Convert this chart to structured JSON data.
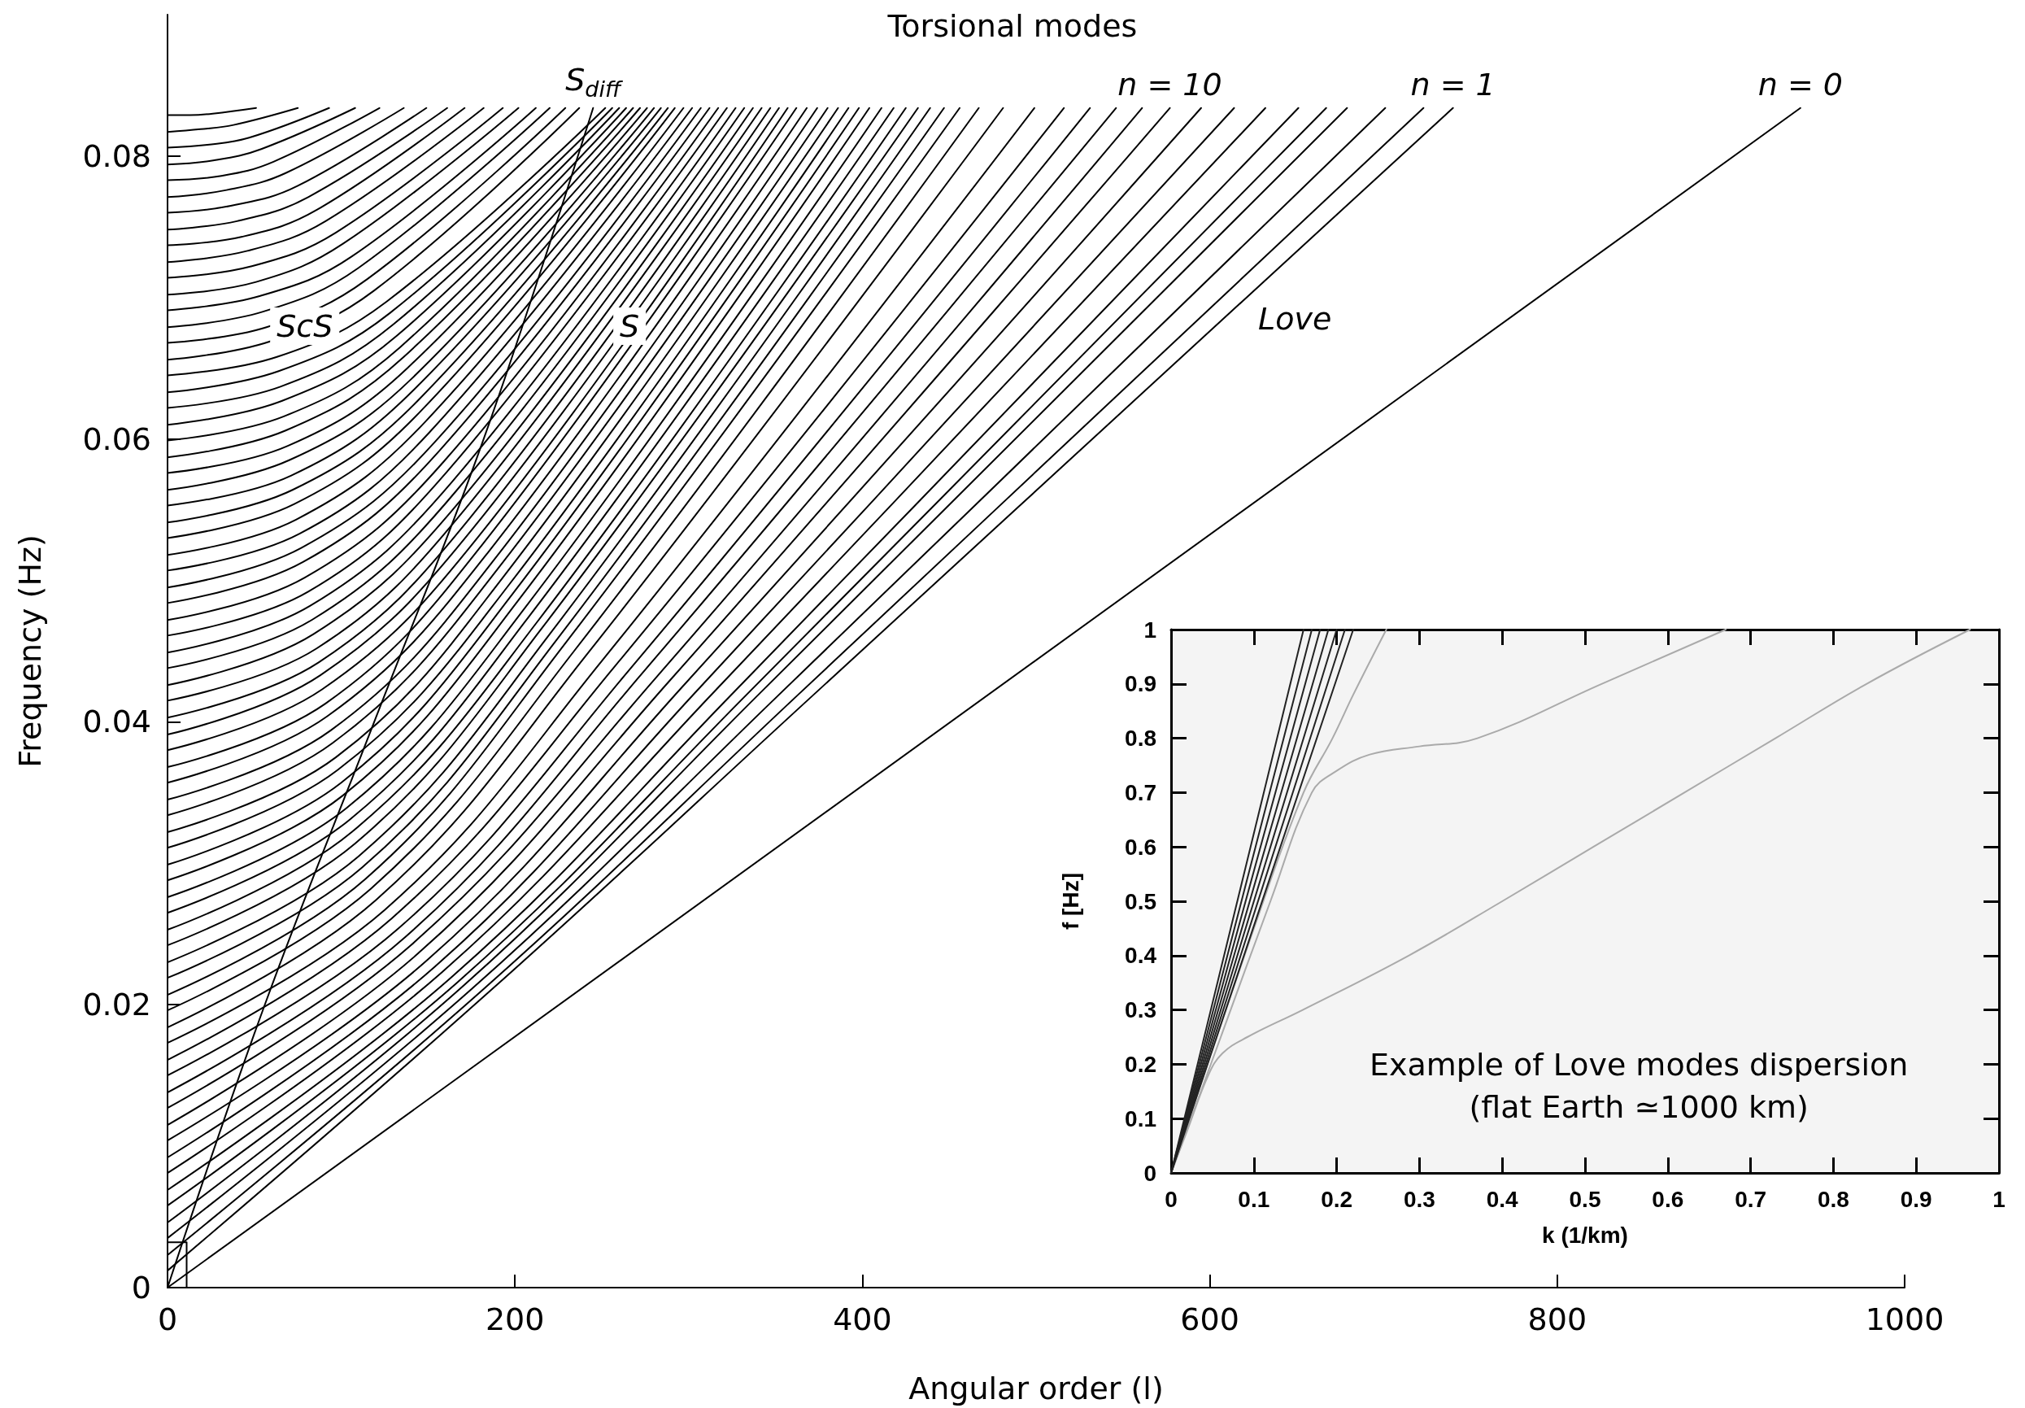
{
  "chart_data": [
    {
      "type": "line",
      "title": "Torsional modes",
      "xlabel": "Angular order (l)",
      "ylabel": "Frequency (Hz)",
      "xlim": [
        0,
        1000
      ],
      "ylim": [
        0,
        0.09
      ],
      "xticks": [
        0,
        200,
        400,
        600,
        800,
        1000
      ],
      "yticks": [
        0,
        0.02,
        0.04,
        0.06,
        0.08
      ],
      "annotations": [
        {
          "text": "S$_{diff}$",
          "x": 245,
          "y": 0.0834
        },
        {
          "text": "ScS",
          "x": 79,
          "y": 0.0663
        },
        {
          "text": "S",
          "x": 266,
          "y": 0.0663
        },
        "Love",
        {
          "text": "n = 10",
          "x": 577,
          "y": 0.0834
        },
        {
          "text": "n = 1",
          "x": 740,
          "y": 0.0834
        },
        {
          "text": "n = 0",
          "x": 940,
          "y": 0.0834
        }
      ],
      "series": [
        {
          "color": "#000000",
          "x": [
            0,
            940
          ],
          "values": [
            0,
            0.0834
          ]
        },
        {
          "type": "step",
          "color": "#000000",
          "x": [
            0,
            11
          ],
          "values": [
            0.0032,
            0
          ]
        },
        {
          "color": "#000000",
          "x": [
            0,
            56,
            119,
            182,
            245
          ],
          "values": [
            0,
            0.02,
            0.04,
            0.06,
            0.0834
          ]
        },
        {
          "color": "#000000",
          "x": [
            0,
            185,
            370,
            740
          ],
          "values": [
            0.0012,
            0.0209,
            0.0417,
            0.0834
          ]
        },
        {
          "color": "#000000",
          "x": [
            0,
            181,
            362,
            723
          ],
          "values": [
            0.0023,
            0.021,
            0.0418,
            0.0834
          ]
        },
        {
          "color": "#000000",
          "x": [
            0,
            175,
            351,
            701
          ],
          "values": [
            0.0035,
            0.0211,
            0.0418,
            0.0834
          ]
        },
        {
          "color": "#000000",
          "x": [
            0,
            170,
            340,
            679
          ],
          "values": [
            0.0046,
            0.0213,
            0.0419,
            0.0834
          ]
        },
        {
          "color": "#000000",
          "x": [
            0,
            167,
            334,
            667
          ],
          "values": [
            0.0058,
            0.0216,
            0.042,
            0.0834
          ]
        },
        {
          "color": "#000000",
          "x": [
            0,
            163,
            326,
            651
          ],
          "values": [
            0.0069,
            0.0219,
            0.0421,
            0.0834
          ]
        },
        {
          "color": "#000000",
          "x": [
            0,
            158,
            316,
            632
          ],
          "values": [
            0.0081,
            0.0223,
            0.0423,
            0.0834
          ]
        },
        {
          "color": "#000000",
          "x": [
            0,
            154,
            307,
            614
          ],
          "values": [
            0.0092,
            0.0227,
            0.0425,
            0.0834
          ]
        },
        {
          "color": "#000000",
          "x": [
            0,
            149,
            298,
            595
          ],
          "values": [
            0.0104,
            0.0231,
            0.0427,
            0.0834
          ]
        },
        {
          "color": "#000000",
          "x": [
            0,
            144,
            289,
            577
          ],
          "values": [
            0.0115,
            0.0236,
            0.0429,
            0.0834
          ]
        },
        {
          "color": "#000000",
          "x": [
            0,
            140,
            281,
            561
          ],
          "values": [
            0.0127,
            0.0242,
            0.0431,
            0.0834
          ]
        },
        {
          "color": "#000000",
          "x": [
            0,
            137,
            273,
            546
          ],
          "values": [
            0.0138,
            0.0248,
            0.0434,
            0.0834
          ]
        },
        {
          "color": "#000000",
          "x": [
            0,
            133,
            266,
            531
          ],
          "values": [
            0.015,
            0.0254,
            0.0437,
            0.0834
          ]
        },
        {
          "color": "#000000",
          "x": [
            0,
            129,
            258,
            516
          ],
          "values": [
            0.0161,
            0.0261,
            0.044,
            0.0834
          ]
        },
        {
          "color": "#000000",
          "x": [
            0,
            125,
            250,
            499
          ],
          "values": [
            0.0173,
            0.0267,
            0.0443,
            0.0834
          ]
        },
        {
          "color": "#000000",
          "x": [
            0,
            120,
            241,
            481
          ],
          "values": [
            0.0184,
            0.0274,
            0.0447,
            0.0834
          ]
        },
        {
          "color": "#000000",
          "x": [
            0,
            117,
            234,
            467
          ],
          "values": [
            0.0196,
            0.0282,
            0.045,
            0.0834
          ]
        },
        {
          "color": "#000000",
          "x": [
            0,
            114,
            228,
            456
          ],
          "values": [
            0.0207,
            0.0289,
            0.0454,
            0.0834
          ]
        },
        {
          "color": "#000000",
          "x": [
            0,
            112,
            224,
            447
          ],
          "values": [
            0.0219,
            0.0297,
            0.0458,
            0.0834
          ]
        },
        {
          "color": "#000000",
          "x": [
            0,
            110,
            220,
            439
          ],
          "values": [
            0.023,
            0.0305,
            0.0462,
            0.0834
          ]
        },
        {
          "color": "#000000",
          "x": [
            0,
            108,
            216,
            432
          ],
          "values": [
            0.0242,
            0.0314,
            0.0467,
            0.0834
          ]
        },
        {
          "color": "#000000",
          "x": [
            0,
            106,
            213,
            425
          ],
          "values": [
            0.0253,
            0.0322,
            0.0471,
            0.0834
          ]
        },
        {
          "color": "#000000",
          "x": [
            0,
            105,
            209,
            418
          ],
          "values": [
            0.0265,
            0.0331,
            0.0476,
            0.0834
          ]
        },
        {
          "color": "#000000",
          "x": [
            0,
            103,
            206,
            411
          ],
          "values": [
            0.0276,
            0.0339,
            0.0481,
            0.0834
          ]
        },
        {
          "color": "#000000",
          "x": [
            0,
            101,
            202,
            404
          ],
          "values": [
            0.0288,
            0.0348,
            0.0486,
            0.0834
          ]
        },
        {
          "color": "#000000",
          "x": [
            0,
            100,
            199,
            398
          ],
          "values": [
            0.0299,
            0.0357,
            0.0491,
            0.0834
          ]
        },
        {
          "color": "#000000",
          "x": [
            0,
            98,
            196,
            392
          ],
          "values": [
            0.0311,
            0.0366,
            0.0496,
            0.0834
          ]
        },
        {
          "color": "#000000",
          "x": [
            0,
            97,
            193,
            386
          ],
          "values": [
            0.0322,
            0.0375,
            0.0502,
            0.0834
          ]
        },
        {
          "color": "#000000",
          "x": [
            0,
            95,
            190,
            380
          ],
          "values": [
            0.0334,
            0.0385,
            0.0508,
            0.0834
          ]
        },
        {
          "color": "#000000",
          "x": [
            0,
            94,
            187,
            374
          ],
          "values": [
            0.0345,
            0.0394,
            0.0513,
            0.0834
          ]
        },
        {
          "color": "#000000",
          "x": [
            0,
            92,
            184,
            368
          ],
          "values": [
            0.0357,
            0.0404,
            0.0519,
            0.0834
          ]
        },
        {
          "color": "#000000",
          "x": [
            0,
            91,
            181,
            362
          ],
          "values": [
            0.0368,
            0.0413,
            0.0525,
            0.0834
          ]
        },
        {
          "color": "#000000",
          "x": [
            0,
            89,
            179,
            357
          ],
          "values": [
            0.038,
            0.0423,
            0.0531,
            0.0834
          ]
        },
        {
          "color": "#000000",
          "x": [
            0,
            88,
            176,
            352
          ],
          "values": [
            0.0391,
            0.0433,
            0.0537,
            0.0834
          ]
        },
        {
          "color": "#000000",
          "x": [
            0,
            87,
            174,
            347
          ],
          "values": [
            0.0403,
            0.0442,
            0.0544,
            0.0834
          ]
        },
        {
          "color": "#000000",
          "x": [
            0,
            86,
            171,
            342
          ],
          "values": [
            0.0415,
            0.0452,
            0.055,
            0.0834
          ]
        },
        {
          "color": "#000000",
          "x": [
            0,
            84,
            169,
            337
          ],
          "values": [
            0.0426,
            0.0462,
            0.0557,
            0.0834
          ]
        },
        {
          "color": "#000000",
          "x": [
            0,
            83,
            166,
            332
          ],
          "values": [
            0.0438,
            0.0472,
            0.0563,
            0.0834
          ]
        },
        {
          "color": "#000000",
          "x": [
            0,
            82,
            164,
            327
          ],
          "values": [
            0.0449,
            0.0482,
            0.057,
            0.0834
          ]
        },
        {
          "color": "#000000",
          "x": [
            0,
            81,
            161,
            322
          ],
          "values": [
            0.0461,
            0.0492,
            0.0577,
            0.0834
          ]
        },
        {
          "color": "#000000",
          "x": [
            0,
            79,
            159,
            317
          ],
          "values": [
            0.0472,
            0.0502,
            0.0584,
            0.0834
          ]
        },
        {
          "color": "#000000",
          "x": [
            0,
            78,
            156,
            312
          ],
          "values": [
            0.0484,
            0.0513,
            0.0591,
            0.0834
          ]
        },
        {
          "color": "#000000",
          "x": [
            0,
            77,
            154,
            307
          ],
          "values": [
            0.0495,
            0.0523,
            0.0598,
            0.0834
          ]
        },
        {
          "color": "#000000",
          "x": [
            0,
            76,
            151,
            302
          ],
          "values": [
            0.0507,
            0.0533,
            0.0605,
            0.0834
          ]
        },
        {
          "color": "#000000",
          "x": [
            0,
            74,
            149,
            297
          ],
          "values": [
            0.0518,
            0.0543,
            0.0613,
            0.0834
          ]
        },
        {
          "color": "#000000",
          "x": [
            0,
            73,
            146,
            292
          ],
          "values": [
            0.053,
            0.0554,
            0.062,
            0.0834
          ]
        },
        {
          "color": "#000000",
          "x": [
            0,
            72,
            144,
            288
          ],
          "values": [
            0.0541,
            0.0564,
            0.0627,
            0.0834
          ]
        },
        {
          "color": "#000000",
          "x": [
            0,
            71,
            142,
            284
          ],
          "values": [
            0.0553,
            0.0574,
            0.0635,
            0.0834
          ]
        },
        {
          "color": "#000000",
          "x": [
            0,
            70,
            140,
            280
          ],
          "values": [
            0.0564,
            0.0585,
            0.0642,
            0.0834
          ]
        },
        {
          "color": "#000000",
          "x": [
            0,
            69,
            138,
            276
          ],
          "values": [
            0.0576,
            0.0595,
            0.065,
            0.0834
          ]
        },
        {
          "color": "#000000",
          "x": [
            0,
            68,
            136,
            272
          ],
          "values": [
            0.0587,
            0.0606,
            0.0658,
            0.0834
          ]
        },
        {
          "color": "#000000",
          "x": [
            0,
            67,
            134,
            268
          ],
          "values": [
            0.0599,
            0.0616,
            0.0665,
            0.0834
          ]
        },
        {
          "color": "#000000",
          "x": [
            0,
            66,
            132,
            264
          ],
          "values": [
            0.061,
            0.0627,
            0.0673,
            0.0834
          ]
        },
        {
          "color": "#000000",
          "x": [
            0,
            65,
            130,
            260
          ],
          "values": [
            0.0622,
            0.0637,
            0.0681,
            0.0834
          ]
        },
        {
          "color": "#000000",
          "x": [
            0,
            64,
            128,
            256
          ],
          "values": [
            0.0633,
            0.0648,
            0.0689,
            0.0834
          ]
        },
        {
          "color": "#000000",
          "x": [
            0,
            63,
            126,
            252
          ],
          "values": [
            0.0645,
            0.0658,
            0.0697,
            0.0834
          ]
        },
        {
          "color": "#000000",
          "x": [
            0,
            59,
            119,
            237
          ],
          "values": [
            0.0656,
            0.0669,
            0.0705,
            0.0834
          ]
        },
        {
          "color": "#000000",
          "x": [
            0,
            57,
            115,
            229
          ],
          "values": [
            0.0668,
            0.0679,
            0.0713,
            0.0834
          ]
        },
        {
          "color": "#000000",
          "x": [
            0,
            55,
            110,
            220
          ],
          "values": [
            0.0679,
            0.069,
            0.0721,
            0.0834
          ]
        },
        {
          "color": "#000000",
          "x": [
            0,
            53,
            106,
            212
          ],
          "values": [
            0.0691,
            0.0701,
            0.0729,
            0.0834
          ]
        },
        {
          "color": "#000000",
          "x": [
            0,
            51,
            101,
            202
          ],
          "values": [
            0.0702,
            0.0711,
            0.0738,
            0.0834
          ]
        },
        {
          "color": "#000000",
          "x": [
            0,
            48,
            97,
            193
          ],
          "values": [
            0.0714,
            0.0722,
            0.0746,
            0.0834
          ]
        },
        {
          "color": "#000000",
          "x": [
            0,
            46,
            91,
            182
          ],
          "values": [
            0.0725,
            0.0733,
            0.0754,
            0.0834
          ]
        },
        {
          "color": "#000000",
          "x": [
            0,
            43,
            86,
            171
          ],
          "values": [
            0.0737,
            0.0743,
            0.0762,
            0.0834
          ]
        },
        {
          "color": "#000000",
          "x": [
            0,
            40,
            81,
            161
          ],
          "values": [
            0.0748,
            0.0754,
            0.0771,
            0.0834
          ]
        },
        {
          "color": "#000000",
          "x": [
            0,
            37,
            75,
            149
          ],
          "values": [
            0.076,
            0.0765,
            0.0779,
            0.0834
          ]
        },
        {
          "color": "#000000",
          "x": [
            0,
            34,
            68,
            136
          ],
          "values": [
            0.0771,
            0.0776,
            0.0788,
            0.0834
          ]
        },
        {
          "color": "#000000",
          "x": [
            0,
            31,
            61,
            122
          ],
          "values": [
            0.0783,
            0.0786,
            0.0796,
            0.0834
          ]
        },
        {
          "color": "#000000",
          "x": [
            0,
            27,
            54,
            108
          ],
          "values": [
            0.0794,
            0.0797,
            0.0805,
            0.0834
          ]
        },
        {
          "color": "#000000",
          "x": [
            0,
            23,
            47,
            93
          ],
          "values": [
            0.0806,
            0.0808,
            0.0813,
            0.0834
          ]
        },
        {
          "color": "#000000",
          "x": [
            0,
            19,
            38,
            75
          ],
          "values": [
            0.0817,
            0.0819,
            0.0822,
            0.0834
          ]
        },
        {
          "color": "#000000",
          "x": [
            0,
            13,
            26,
            51
          ],
          "values": [
            0.0829,
            0.0829,
            0.083,
            0.0834
          ]
        }
      ]
    },
    {
      "type": "line",
      "xlabel": "k (1/km)",
      "ylabel": "f [Hz]",
      "xlim": [
        0,
        1
      ],
      "ylim": [
        0,
        1
      ],
      "xticks": [
        0,
        0.1,
        0.2,
        0.3,
        0.4,
        0.5,
        0.6,
        0.7,
        0.8,
        0.9,
        1
      ],
      "yticks": [
        0,
        0.1,
        0.2,
        0.3,
        0.4,
        0.5,
        0.6,
        0.7,
        0.8,
        0.9,
        1
      ],
      "annotations": [
        "Example of Love modes dispersion",
        "(flat Earth ≃1000 km)"
      ],
      "series": [
        {
          "color": "#aaaaaa",
          "x": [
            0,
            0.02,
            0.045,
            0.062,
            0.092,
            0.159,
            0.287,
            0.4,
            0.51,
            0.62,
            0.73,
            0.84,
            0.965
          ],
          "values": [
            0,
            0.08,
            0.18,
            0.22,
            0.25,
            0.3,
            0.4,
            0.5,
            0.6,
            0.7,
            0.8,
            0.9,
            1
          ]
        },
        {
          "color": "#aaaaaa",
          "x": [
            0,
            0.06,
            0.12,
            0.17,
            0.2,
            0.24,
            0.3,
            0.37,
            0.52,
            0.67
          ],
          "values": [
            0,
            0.25,
            0.5,
            0.7,
            0.74,
            0.77,
            0.785,
            0.8,
            0.9,
            1
          ]
        },
        {
          "color": "#aaaaaa",
          "x": [
            0,
            0.1,
            0.16,
            0.195,
            0.22,
            0.26
          ],
          "values": [
            0,
            0.45,
            0.7,
            0.8,
            0.88,
            1
          ]
        },
        {
          "color": "#222222",
          "x": [
            0,
            0.16
          ],
          "values": [
            0,
            1
          ]
        },
        {
          "color": "#222222",
          "x": [
            0,
            0.17
          ],
          "values": [
            0,
            1
          ]
        },
        {
          "color": "#222222",
          "x": [
            0,
            0.18
          ],
          "values": [
            0,
            1
          ]
        },
        {
          "color": "#222222",
          "x": [
            0,
            0.19
          ],
          "values": [
            0,
            1
          ]
        },
        {
          "color": "#222222",
          "x": [
            0,
            0.2
          ],
          "values": [
            0,
            1
          ]
        },
        {
          "color": "#222222",
          "x": [
            0,
            0.21
          ],
          "values": [
            0,
            1
          ]
        },
        {
          "color": "#222222",
          "x": [
            0,
            0.22
          ],
          "values": [
            0,
            1
          ]
        }
      ]
    }
  ]
}
